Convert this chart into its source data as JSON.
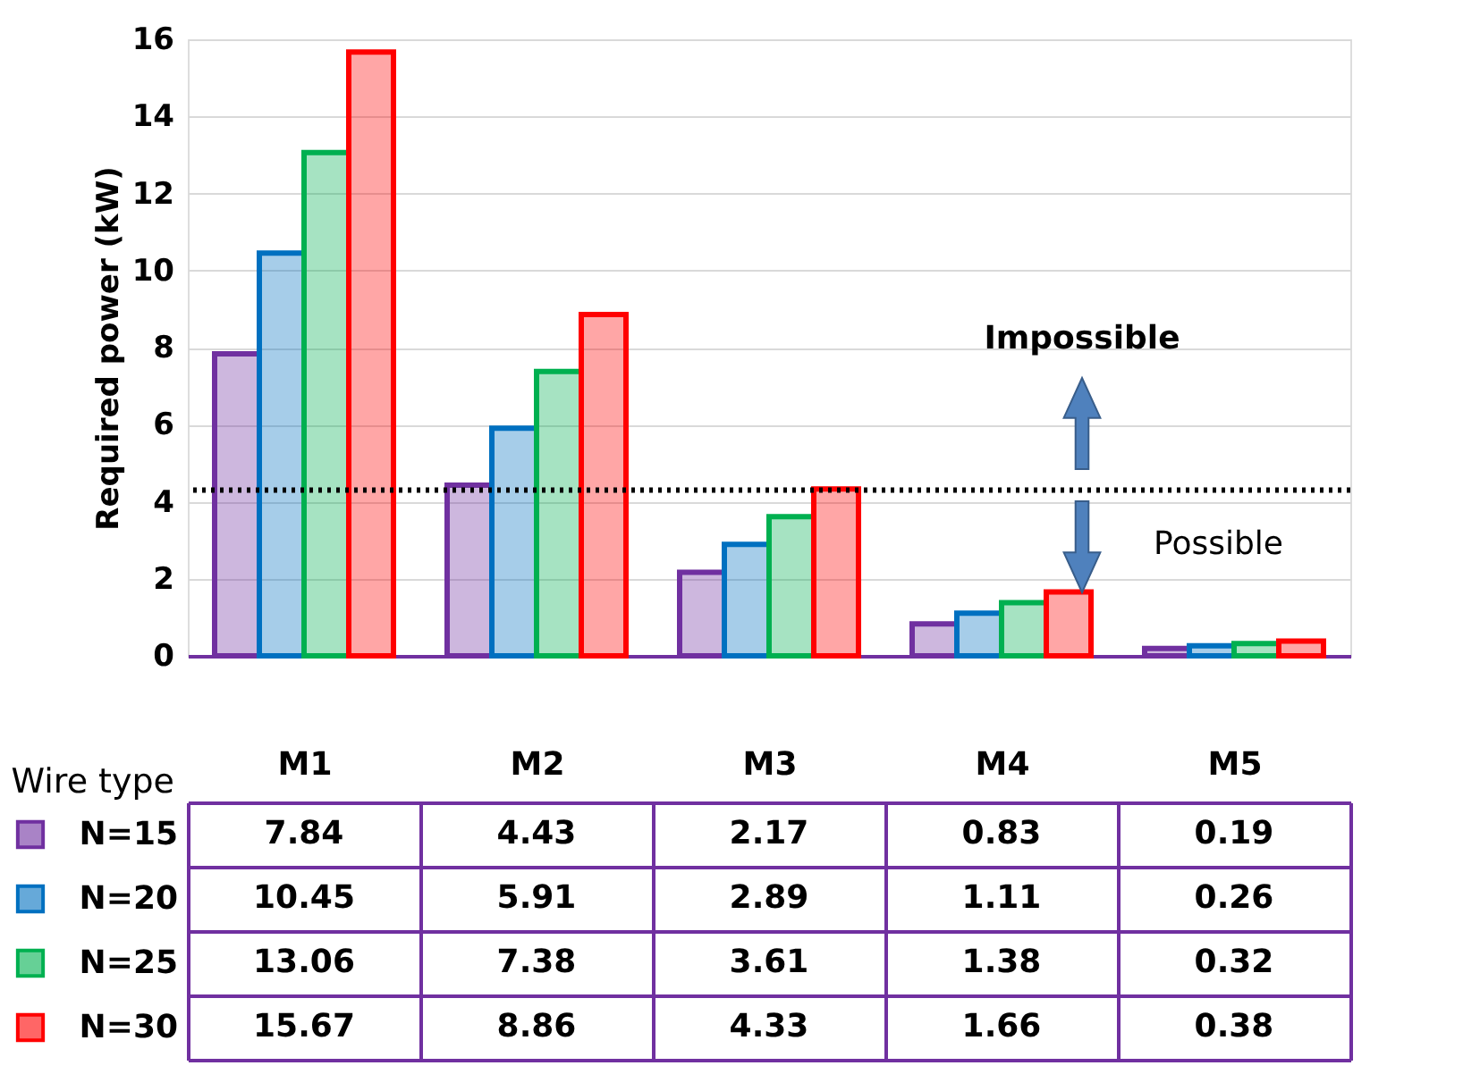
{
  "chart_data": {
    "type": "bar",
    "ylabel": "Required power (kW)",
    "xlabel": "Wire type",
    "categories": [
      "M1",
      "M2",
      "M3",
      "M4",
      "M5"
    ],
    "series": [
      {
        "name": "N=15",
        "color": "#7030a0",
        "values": [
          7.84,
          4.43,
          2.17,
          0.83,
          0.19
        ]
      },
      {
        "name": "N=20",
        "color": "#0070c0",
        "values": [
          10.45,
          5.91,
          2.89,
          1.11,
          0.26
        ]
      },
      {
        "name": "N=25",
        "color": "#00b050",
        "values": [
          13.06,
          7.38,
          3.61,
          1.38,
          0.32
        ]
      },
      {
        "name": "N=30",
        "color": "#ff0000",
        "values": [
          15.67,
          8.86,
          4.33,
          1.66,
          0.38
        ]
      }
    ],
    "ylim": [
      0,
      16
    ],
    "yticks": [
      0,
      2,
      4,
      6,
      8,
      10,
      12,
      14,
      16
    ],
    "grid": "y",
    "ref_lines": [
      {
        "axis": "y",
        "value": 4.3,
        "color": "#000000",
        "line_style": "dotted"
      }
    ],
    "annotations": [
      "Impossible",
      "Possible"
    ],
    "data_labels": true,
    "legend": "bottom left"
  }
}
